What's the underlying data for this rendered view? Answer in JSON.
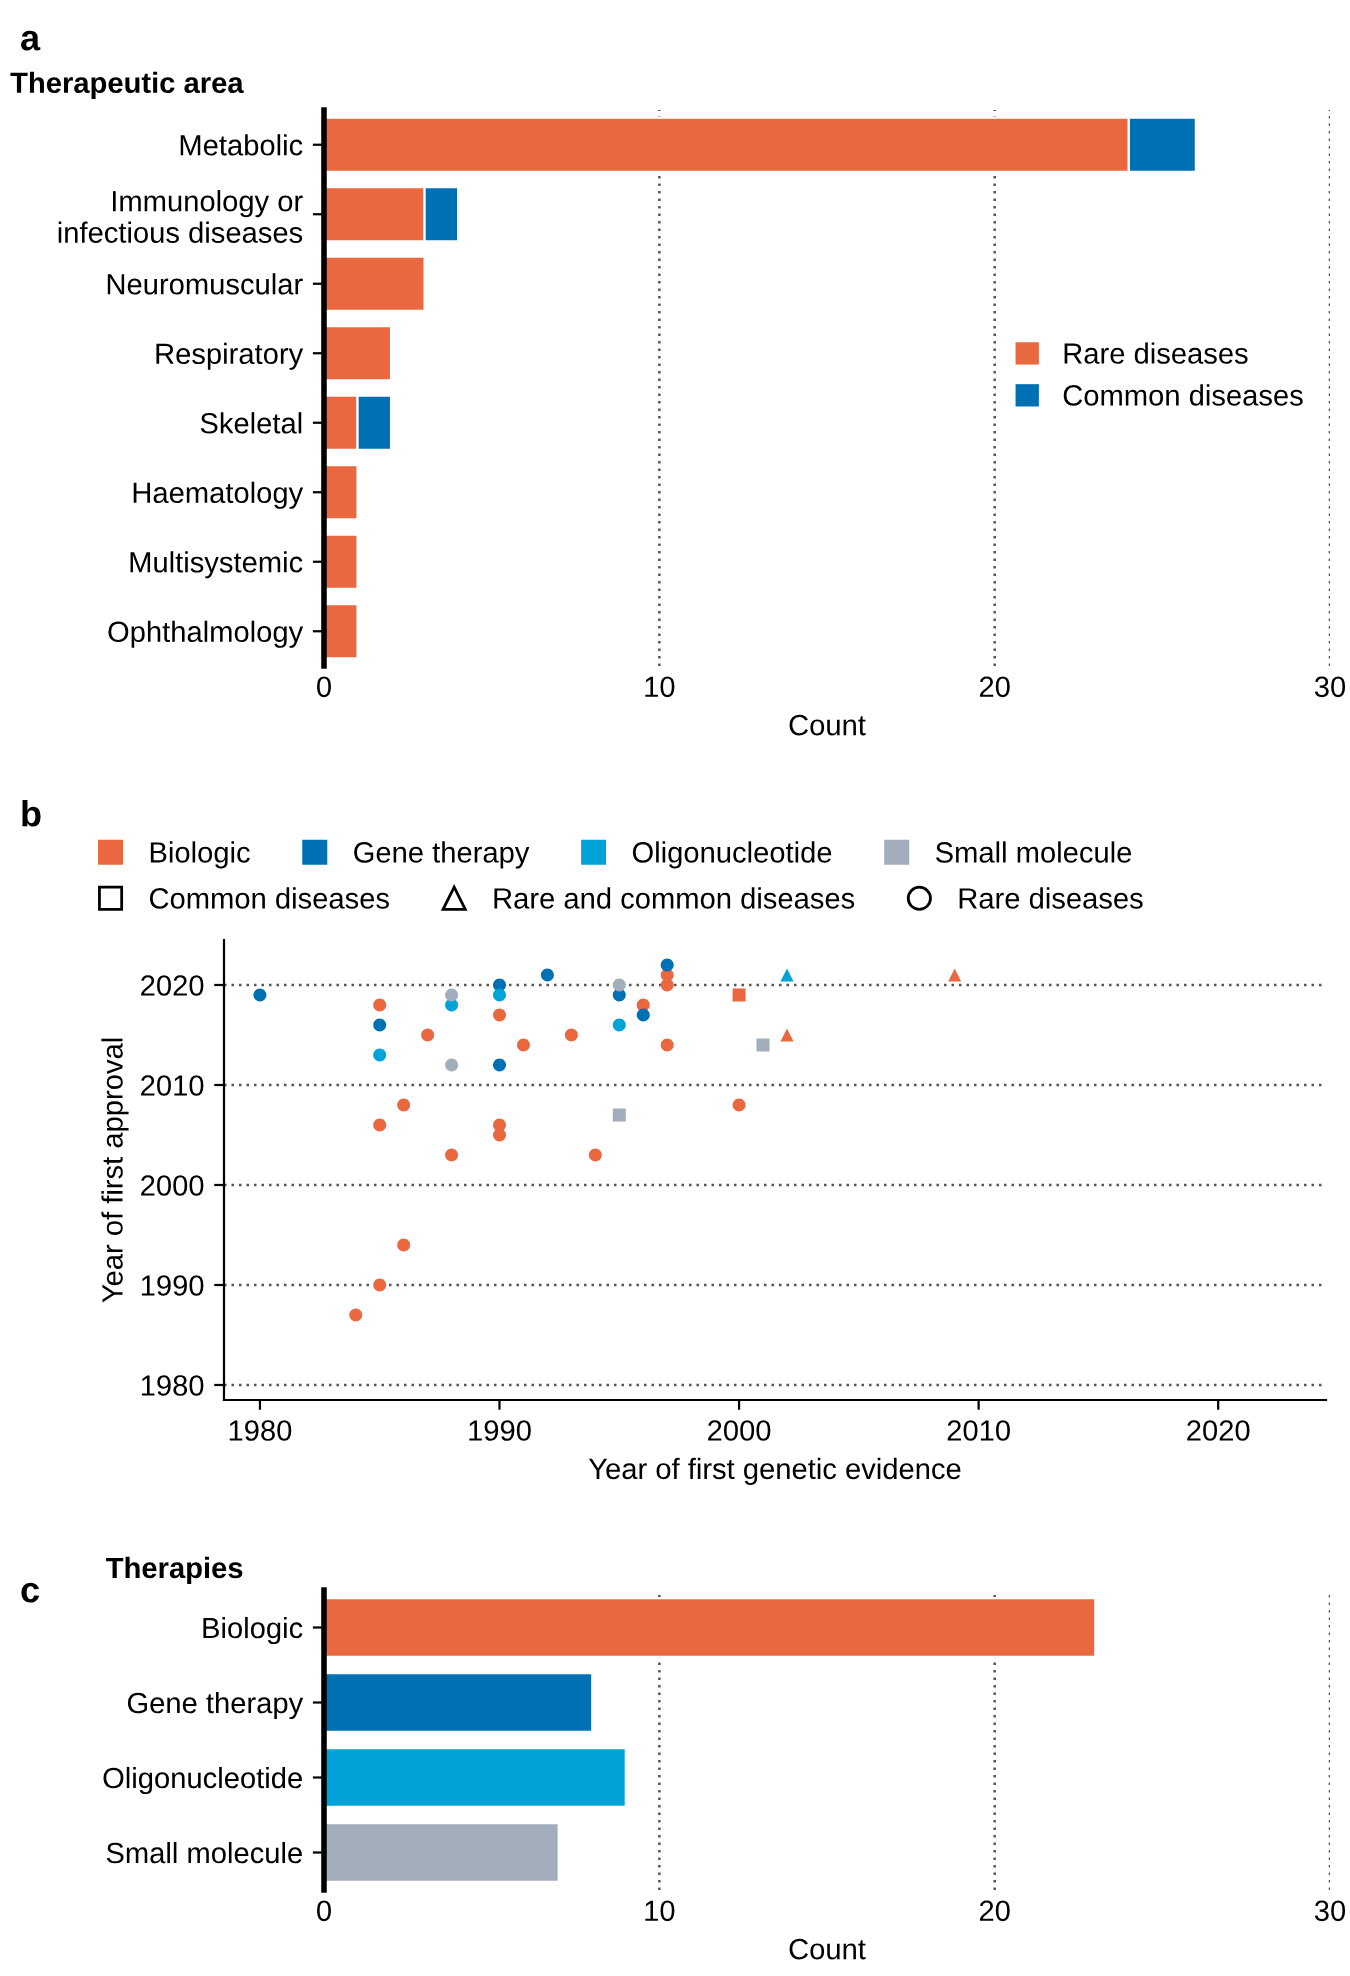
{
  "chart_data": [
    {
      "type": "bar",
      "orientation": "horizontal",
      "stacked": true,
      "title": "a",
      "ylabel": "Therapeutic area",
      "xlabel": "Count",
      "categories": [
        "Metabolic",
        "Immunology or\ninfectious diseases",
        "Neuromuscular",
        "Respiratory",
        "Skeletal",
        "Haematology",
        "Multisystemic",
        "Ophthalmology"
      ],
      "series": [
        {
          "name": "Rare diseases",
          "color": "#e9683f",
          "values": [
            24,
            3,
            3,
            2,
            1,
            1,
            1,
            1
          ]
        },
        {
          "name": "Common diseases",
          "color": "#0070b4",
          "values": [
            2,
            1,
            0,
            0,
            1,
            0,
            0,
            0
          ]
        }
      ],
      "xlim": [
        0,
        30
      ],
      "xticks": [
        0,
        10,
        20,
        30
      ],
      "grid": "x",
      "legend": "right"
    },
    {
      "type": "scatter",
      "title": "b",
      "xlabel": "Year of first genetic evidence",
      "ylabel": "Year of first approval",
      "series": [
        {
          "name": "Biologic",
          "color": "#e9683f",
          "marker": "circle",
          "x": [
            1985,
            1985,
            1985,
            1986,
            1986,
            1984,
            1987,
            1988,
            1990,
            1990,
            1990,
            1991,
            1993,
            1994,
            1996,
            1997,
            1997,
            1997,
            2000
          ],
          "values": [
            2018,
            2006,
            1990,
            2008,
            1994,
            1987,
            2015,
            2003,
            2017,
            2006,
            2005,
            2014,
            2015,
            2003,
            2018,
            2021,
            2020,
            2014,
            2008
          ]
        },
        {
          "color": "#e9683f",
          "marker": "square",
          "x": [
            2000
          ],
          "values": [
            2019
          ]
        },
        {
          "color": "#e9683f",
          "marker": "triangle",
          "x": [
            2002,
            2009
          ],
          "values": [
            2015,
            2021
          ]
        },
        {
          "name": "Gene therapy",
          "color": "#0070b4",
          "marker": "circle",
          "x": [
            1980,
            1985,
            1990,
            1990,
            1992,
            1995,
            1996,
            1997
          ],
          "values": [
            2019,
            2016,
            2020,
            2012,
            2021,
            2019,
            2017,
            2022
          ]
        },
        {
          "name": "Oligonucleotide",
          "color": "#00a3d8",
          "marker": "circle",
          "x": [
            1985,
            1988,
            1990,
            1995
          ],
          "values": [
            2013,
            2018,
            2019,
            2016
          ]
        },
        {
          "color": "#00a3d8",
          "marker": "triangle",
          "x": [
            2002
          ],
          "values": [
            2021
          ]
        },
        {
          "name": "Small molecule",
          "color": "#a2aebb",
          "marker": "circle",
          "x": [
            1988,
            1988,
            1995
          ],
          "values": [
            2019,
            2012,
            2020
          ]
        },
        {
          "color": "#a2aebb",
          "marker": "square",
          "x": [
            1995,
            2001
          ],
          "values": [
            2007,
            2014
          ]
        }
      ],
      "annotations": [
        "Common diseases",
        "Rare and common diseases",
        "Rare diseases"
      ],
      "xlim": [
        1978.5,
        2024.5
      ],
      "xticks": [
        1980,
        1990,
        2000,
        2010,
        2020
      ],
      "ylim": [
        1978.5,
        2024.5
      ],
      "yticks": [
        1980,
        1990,
        2000,
        2010,
        2020
      ],
      "grid": "y",
      "legend": "top"
    },
    {
      "type": "bar",
      "orientation": "horizontal",
      "title": "c",
      "ylabel": "Therapies",
      "xlabel": "Count",
      "categories": [
        "Biologic",
        "Gene therapy",
        "Oligonucleotide",
        "Small molecule"
      ],
      "values": [
        23,
        8,
        9,
        7
      ],
      "colors": [
        "#e9683f",
        "#0070b4",
        "#00a3d8",
        "#a2aebb"
      ],
      "xlim": [
        0,
        30
      ],
      "xticks": [
        0,
        10,
        20,
        30
      ],
      "grid": "x"
    }
  ]
}
